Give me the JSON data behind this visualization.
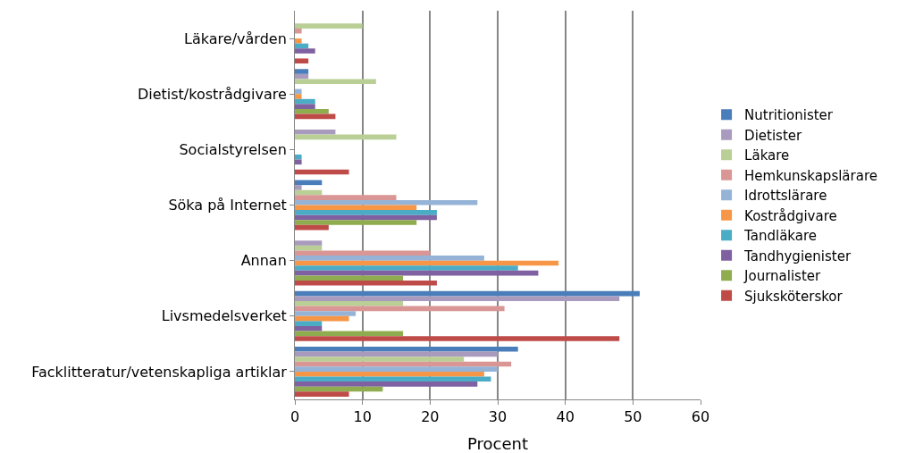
{
  "chart_data": {
    "type": "bar",
    "orientation": "horizontal",
    "xlabel": "Procent",
    "categories": [
      "Läkare/vården",
      "Dietist/kostrådgivare",
      "Socialstyrelsen",
      "Söka på Internet",
      "Annan",
      "Livsmedelsverket",
      "Facklitteratur/vetenskapliga artiklar"
    ],
    "series": [
      {
        "name": "Nutritionister",
        "color": "#4a7ebb",
        "values": [
          0,
          2,
          0,
          4,
          0,
          51,
          33
        ]
      },
      {
        "name": "Dietister",
        "color": "#a99bbd",
        "values": [
          0,
          2,
          6,
          1,
          4,
          48,
          30
        ]
      },
      {
        "name": "Läkare",
        "color": "#b9cf96",
        "values": [
          10,
          12,
          15,
          4,
          4,
          16,
          25
        ]
      },
      {
        "name": "Hemkunskapslärare",
        "color": "#d99694",
        "values": [
          1,
          0,
          0,
          15,
          20,
          31,
          32
        ]
      },
      {
        "name": "Idrottslärare",
        "color": "#95b3d7",
        "values": [
          0,
          1,
          0,
          27,
          28,
          9,
          30
        ]
      },
      {
        "name": "Kostrådgivare",
        "color": "#f79646",
        "values": [
          1,
          1,
          0,
          18,
          39,
          8,
          28
        ]
      },
      {
        "name": "Tandläkare",
        "color": "#4bacc6",
        "values": [
          2,
          3,
          1,
          21,
          33,
          4,
          29
        ]
      },
      {
        "name": "Tandhygienister",
        "color": "#7f60a0",
        "values": [
          3,
          3,
          1,
          21,
          36,
          4,
          27
        ]
      },
      {
        "name": "Journalister",
        "color": "#8fad4e",
        "values": [
          0,
          5,
          0,
          18,
          16,
          16,
          13
        ]
      },
      {
        "name": "Sjuksköterskor",
        "color": "#be4b48",
        "values": [
          2,
          6,
          8,
          5,
          21,
          48,
          8
        ]
      }
    ],
    "xlim": [
      0,
      60
    ],
    "xticks": [
      0,
      10,
      20,
      30,
      40,
      50,
      60
    ],
    "grid": "x",
    "legend": "right"
  }
}
